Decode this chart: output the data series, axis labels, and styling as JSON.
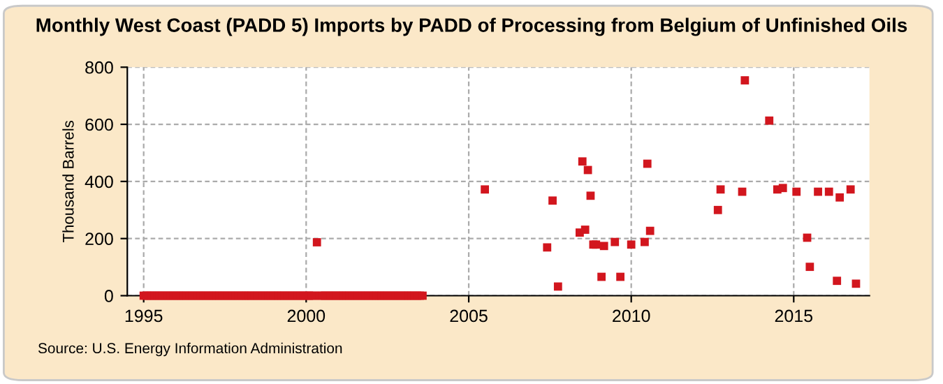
{
  "chart_data": {
    "type": "scatter",
    "title": "Monthly West Coast (PADD 5) Imports by PADD of Processing from Belgium of Unfinished Oils",
    "ylabel": "Thousand Barrels",
    "annotations": [
      "Source: U.S. Energy Information Administration"
    ],
    "x": [
      "1995-01",
      "1995-02",
      "1995-03",
      "1995-04",
      "1995-05",
      "1995-06",
      "1995-07",
      "1995-08",
      "1995-09",
      "1995-10",
      "1995-11",
      "1995-12",
      "1996-01",
      "1996-02",
      "1996-03",
      "1996-04",
      "1996-05",
      "1996-06",
      "1996-07",
      "1996-08",
      "1996-09",
      "1996-10",
      "1996-11",
      "1996-12",
      "1997-01",
      "1997-02",
      "1997-03",
      "1997-04",
      "1997-05",
      "1997-06",
      "1997-07",
      "1997-08",
      "1997-09",
      "1997-10",
      "1997-11",
      "1997-12",
      "1998-01",
      "1998-02",
      "1998-03",
      "1998-04",
      "1998-05",
      "1998-06",
      "1998-07",
      "1998-08",
      "1998-09",
      "1998-10",
      "1998-11",
      "1998-12",
      "1999-01",
      "1999-02",
      "1999-03",
      "1999-04",
      "1999-05",
      "1999-06",
      "1999-07",
      "1999-08",
      "1999-09",
      "1999-10",
      "1999-11",
      "1999-12",
      "2000-01",
      "2000-02",
      "2000-03",
      "2000-04",
      "2000-05",
      "2000-06",
      "2000-07",
      "2000-08",
      "2000-09",
      "2000-10",
      "2000-11",
      "2000-12",
      "2001-01",
      "2001-02",
      "2001-03",
      "2001-04",
      "2001-05",
      "2001-06",
      "2001-07",
      "2001-08",
      "2001-09",
      "2001-10",
      "2001-11",
      "2001-12",
      "2002-01",
      "2002-02",
      "2002-03",
      "2002-04",
      "2002-05",
      "2002-06",
      "2002-07",
      "2002-08",
      "2002-09",
      "2002-10",
      "2002-11",
      "2002-12",
      "2003-01",
      "2003-02",
      "2003-03",
      "2003-04",
      "2003-05",
      "2003-06",
      "2003-07",
      "2003-08",
      "2005-07",
      "2007-06",
      "2007-08",
      "2007-10",
      "2008-06",
      "2008-07",
      "2008-08",
      "2008-09",
      "2008-10",
      "2008-11",
      "2008-12",
      "2009-02",
      "2009-03",
      "2009-07",
      "2009-09",
      "2010-01",
      "2010-06",
      "2010-07",
      "2010-08",
      "2012-09",
      "2012-10",
      "2013-06",
      "2013-07",
      "2014-04",
      "2014-07",
      "2014-09",
      "2015-02",
      "2015-06",
      "2015-07",
      "2015-10",
      "2016-02",
      "2016-05",
      "2016-06",
      "2016-10",
      "2016-12"
    ],
    "values": [
      0,
      0,
      0,
      0,
      0,
      0,
      0,
      0,
      0,
      0,
      0,
      0,
      0,
      0,
      0,
      0,
      0,
      0,
      0,
      0,
      0,
      0,
      0,
      0,
      0,
      0,
      0,
      0,
      0,
      0,
      0,
      0,
      0,
      0,
      0,
      0,
      0,
      0,
      0,
      0,
      0,
      0,
      0,
      0,
      0,
      0,
      0,
      0,
      0,
      0,
      0,
      0,
      0,
      0,
      0,
      0,
      0,
      0,
      0,
      0,
      0,
      0,
      0,
      0,
      187,
      0,
      0,
      0,
      0,
      0,
      0,
      0,
      0,
      0,
      0,
      0,
      0,
      0,
      0,
      0,
      0,
      0,
      0,
      0,
      0,
      0,
      0,
      0,
      0,
      0,
      0,
      0,
      0,
      0,
      0,
      0,
      0,
      0,
      0,
      0,
      0,
      0,
      0,
      0,
      372,
      169,
      333,
      32,
      221,
      470,
      231,
      440,
      350,
      179,
      179,
      66,
      174,
      188,
      66,
      179,
      188,
      462,
      227,
      300,
      372,
      364,
      754,
      613,
      372,
      377,
      364,
      203,
      101,
      364,
      364,
      52,
      344,
      372,
      42
    ],
    "color": "#d2161e",
    "marker": "square",
    "xlim": [
      "1994-07",
      "2017-05"
    ],
    "xticks": [
      "1995",
      "2000",
      "2005",
      "2010",
      "2015"
    ],
    "ylim": [
      0,
      800
    ],
    "yticks": [
      0,
      200,
      400,
      600,
      800
    ],
    "grid": true
  }
}
